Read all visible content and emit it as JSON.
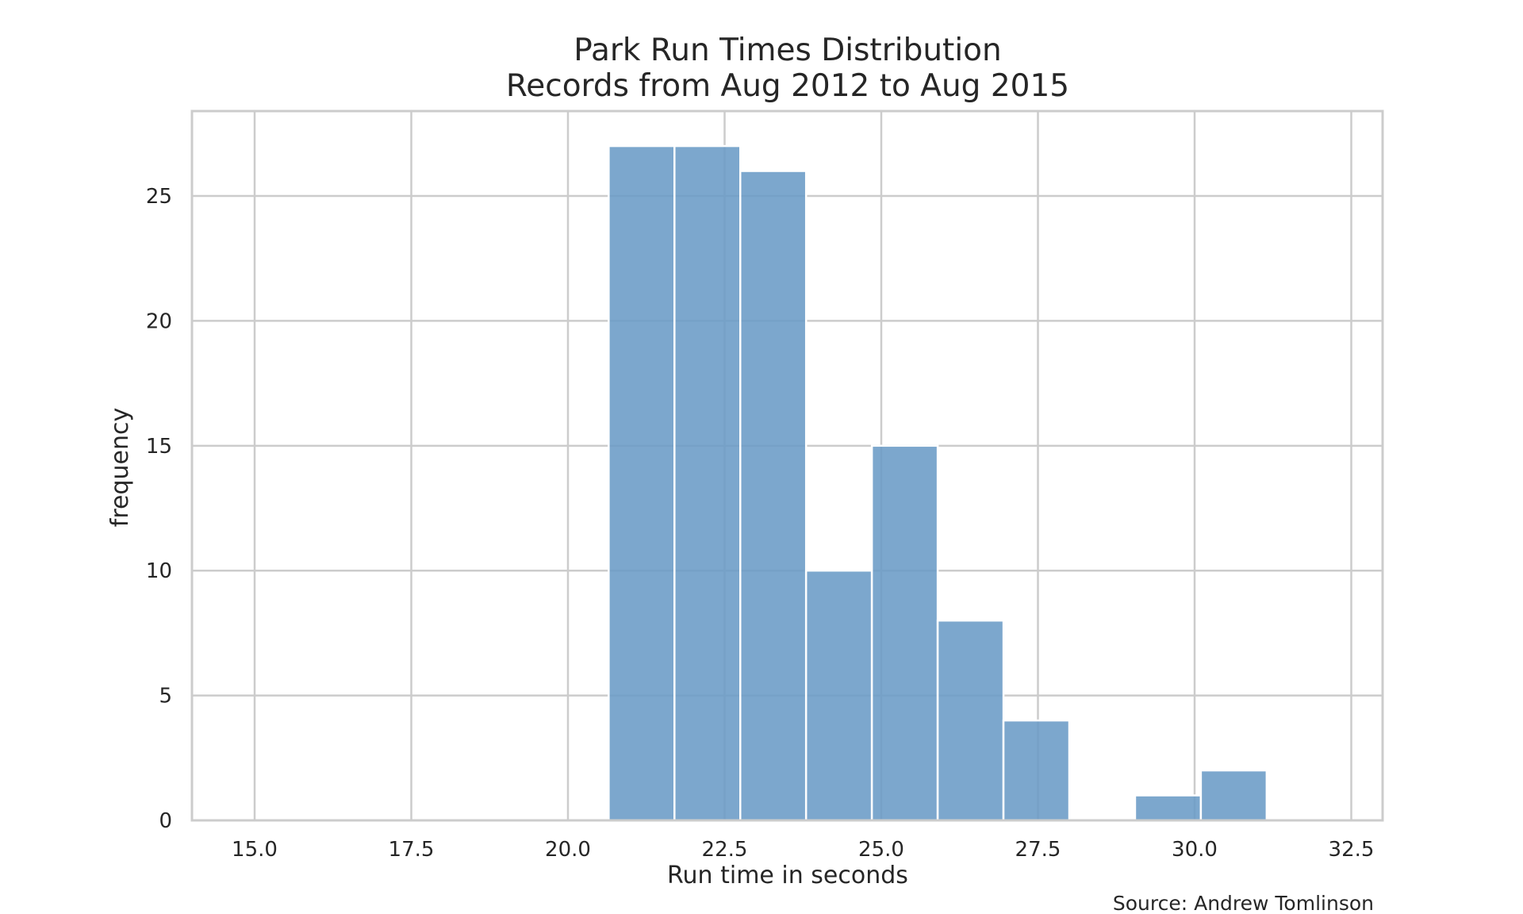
{
  "chart_data": {
    "type": "bar",
    "subtype": "histogram",
    "title": "Park Run Times Distribution",
    "subtitle": "Records from Aug 2012 to Aug 2015",
    "xlabel": "Run time in seconds",
    "ylabel": "frequency",
    "xlim": [
      14.0,
      33.0
    ],
    "ylim": [
      0,
      28.4
    ],
    "x_ticks": [
      "15.0",
      "17.5",
      "20.0",
      "22.5",
      "25.0",
      "27.5",
      "30.0",
      "32.5"
    ],
    "x_tick_values": [
      15.0,
      17.5,
      20.0,
      22.5,
      25.0,
      27.5,
      30.0,
      32.5
    ],
    "y_ticks": [
      "0",
      "5",
      "10",
      "15",
      "20",
      "25"
    ],
    "y_tick_values": [
      0,
      5,
      10,
      15,
      20,
      25
    ],
    "grid": true,
    "bar_color": "#6a9bc6",
    "bin_edges": [
      20.65,
      21.7,
      22.75,
      23.8,
      24.85,
      25.9,
      26.95,
      28.0,
      29.05,
      30.1,
      31.15
    ],
    "values": [
      27,
      27,
      26,
      10,
      15,
      8,
      4,
      0,
      1,
      2
    ],
    "source": "Source: Andrew Tomlinson"
  }
}
